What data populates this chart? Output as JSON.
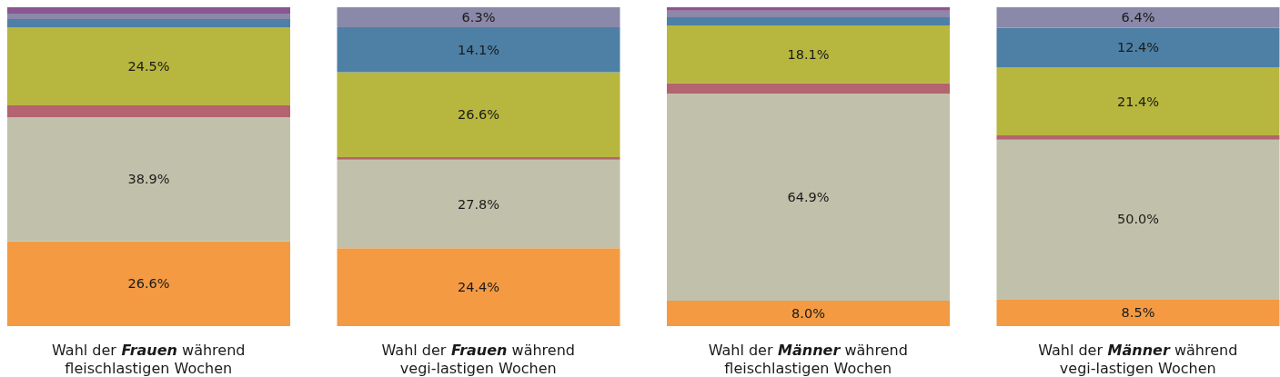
{
  "chart_data": {
    "type": "bar",
    "stacked": true,
    "categories": [
      "Wahl der Frauen während fleischlastigen Wochen",
      "Wahl der Frauen während vegi-lastigen Wochen",
      "Wahl der Männer während fleischlastigen Wochen",
      "Wahl der Männer während vegi-lastigen Wochen"
    ],
    "ylim": [
      0,
      100
    ],
    "tick_labels": "x",
    "series": [
      {
        "color": "#f39a43",
        "values": [
          26.6,
          24.4,
          8.0,
          8.5
        ],
        "value_labels": [
          "26.6%",
          "24.4%",
          "8.0%",
          "8.5%"
        ]
      },
      {
        "color": "#c1c1ab",
        "values": [
          38.9,
          27.8,
          64.9,
          50.0
        ],
        "value_labels": [
          "38.9%",
          "27.8%",
          "64.9%",
          "50.0%"
        ]
      },
      {
        "color": "#b46371",
        "values": [
          3.7,
          0.8,
          3.3,
          1.3
        ]
      },
      {
        "color": "#b7b63e",
        "values": [
          24.5,
          26.6,
          18.1,
          21.4
        ],
        "value_labels": [
          "24.5%",
          "26.6%",
          "18.1%",
          "21.4%"
        ]
      },
      {
        "color": "#4e80a5",
        "values": [
          2.6,
          14.1,
          2.6,
          12.4
        ],
        "value_labels": [
          null,
          "14.1%",
          null,
          "12.4%"
        ]
      },
      {
        "color": "#8a89a9",
        "values": [
          1.7,
          6.3,
          2.0,
          6.4
        ],
        "value_labels": [
          null,
          "6.3%",
          null,
          "6.4%"
        ]
      },
      {
        "color": "#8a568f",
        "values": [
          2.0,
          0,
          1.1,
          0
        ]
      }
    ]
  }
}
